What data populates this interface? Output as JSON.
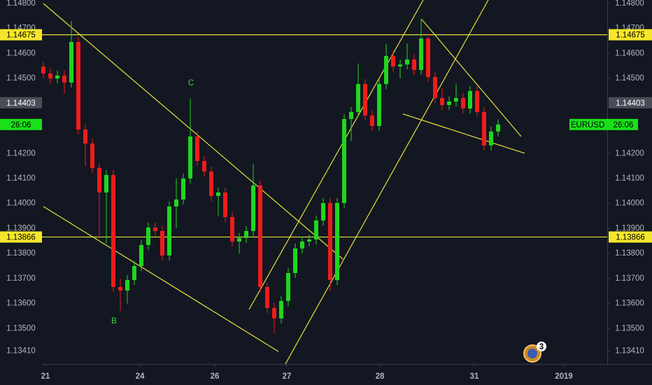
{
  "chart_data": {
    "type": "candlestick",
    "symbol": "EURUSD",
    "countdown": "26:06",
    "notification_count": "3",
    "up_color": "#1fd61f",
    "down_color": "#ee1c1c",
    "line_color": "#e6e03a",
    "xlim": [
      -0.2,
      80.6
    ],
    "xticks": [
      {
        "value": 0.3,
        "label": "21"
      },
      {
        "value": 13.8,
        "label": "24"
      },
      {
        "value": 24.5,
        "label": "26"
      },
      {
        "value": 34.8,
        "label": "27"
      },
      {
        "value": 48.1,
        "label": "28"
      },
      {
        "value": 61.6,
        "label": "31"
      },
      {
        "value": 74.4,
        "label": "2019"
      }
    ],
    "ylim": [
      1.13358,
      1.14814
    ],
    "yticks": [
      {
        "value": 1.148,
        "label": "1.14800"
      },
      {
        "value": 1.147,
        "label": "1.14700"
      },
      {
        "value": 1.146,
        "label": "1.14600"
      },
      {
        "value": 1.145,
        "label": "1.14500"
      },
      {
        "value": 1.142,
        "label": "1.14200"
      },
      {
        "value": 1.141,
        "label": "1.14100"
      },
      {
        "value": 1.14,
        "label": "1.14000"
      },
      {
        "value": 1.139,
        "label": "1.13900"
      },
      {
        "value": 1.138,
        "label": "1.13800"
      },
      {
        "value": 1.137,
        "label": "1.13700"
      },
      {
        "value": 1.136,
        "label": "1.13600"
      },
      {
        "value": 1.135,
        "label": "1.13500"
      },
      {
        "value": 1.1341,
        "label": "1.13410"
      }
    ],
    "open": [
      1.14548,
      1.1452,
      1.145,
      1.14512,
      1.14484,
      1.14646,
      1.14296,
      1.1424,
      1.14142,
      1.14044,
      1.14114,
      1.13666,
      1.13652,
      1.13694,
      1.1375,
      1.13834,
      1.13904,
      1.1389,
      1.13792,
      1.13988,
      1.14016,
      1.141,
      1.14268,
      1.1417,
      1.14128,
      1.1403,
      1.14044,
      1.13946,
      1.13848,
      1.13862,
      1.1389,
      1.14072,
      1.13666,
      1.13582,
      1.1354,
      1.1361,
      1.13722,
      1.1382,
      1.13848,
      1.13856,
      1.13932,
      1.14002,
      1.13694,
      1.14002,
      1.14338,
      1.14366,
      1.14478,
      1.14352,
      1.1431,
      1.14478,
      1.1459,
      1.14548,
      1.14556,
      1.14576,
      1.14534,
      1.1466,
      1.14506,
      1.14422,
      1.14394,
      1.14408,
      1.14422,
      1.1438,
      1.1445,
      1.14366,
      1.14232,
      1.14288
    ],
    "high": [
      1.14568,
      1.1454,
      1.14532,
      1.14532,
      1.1473,
      1.14666,
      1.14316,
      1.1426,
      1.14162,
      1.14134,
      1.14134,
      1.137,
      1.13714,
      1.1377,
      1.13854,
      1.13924,
      1.13924,
      1.1391,
      1.14008,
      1.141,
      1.1412,
      1.1442,
      1.14288,
      1.1419,
      1.14148,
      1.14064,
      1.14064,
      1.13966,
      1.13882,
      1.1391,
      1.1416,
      1.14092,
      1.13686,
      1.13602,
      1.1363,
      1.13742,
      1.1384,
      1.13868,
      1.13876,
      1.13952,
      1.14022,
      1.14022,
      1.14022,
      1.14358,
      1.14386,
      1.1456,
      1.14498,
      1.14372,
      1.14498,
      1.1464,
      1.1461,
      1.14576,
      1.1464,
      1.14596,
      1.1474,
      1.1468,
      1.14526,
      1.1446,
      1.14428,
      1.1448,
      1.14442,
      1.1447,
      1.1447,
      1.14386,
      1.14308,
      1.14336
    ],
    "low": [
      1.145,
      1.1448,
      1.1448,
      1.1444,
      1.14464,
      1.14276,
      1.1415,
      1.14122,
      1.1386,
      1.1384,
      1.13646,
      1.1357,
      1.136,
      1.13674,
      1.1373,
      1.13814,
      1.1387,
      1.13772,
      1.13772,
      1.139,
      1.13996,
      1.1408,
      1.1415,
      1.14108,
      1.1401,
      1.1395,
      1.13926,
      1.13828,
      1.138,
      1.13842,
      1.1387,
      1.13646,
      1.13562,
      1.1348,
      1.1352,
      1.1359,
      1.13702,
      1.138,
      1.13828,
      1.13836,
      1.13912,
      1.1365,
      1.13674,
      1.13982,
      1.1425,
      1.14346,
      1.14332,
      1.1429,
      1.1429,
      1.14458,
      1.14528,
      1.145,
      1.14536,
      1.14514,
      1.14514,
      1.14486,
      1.14402,
      1.14374,
      1.14374,
      1.14388,
      1.1436,
      1.1436,
      1.14346,
      1.14212,
      1.14212,
      1.14268
    ],
    "close": [
      1.1452,
      1.145,
      1.14512,
      1.14484,
      1.14646,
      1.14296,
      1.1424,
      1.14142,
      1.14044,
      1.14114,
      1.13666,
      1.13652,
      1.13694,
      1.1375,
      1.13834,
      1.13904,
      1.1389,
      1.13792,
      1.13988,
      1.14016,
      1.141,
      1.14268,
      1.1417,
      1.14128,
      1.1403,
      1.14044,
      1.13946,
      1.13848,
      1.13862,
      1.1389,
      1.14072,
      1.13666,
      1.13582,
      1.1354,
      1.1361,
      1.13722,
      1.1382,
      1.13848,
      1.13856,
      1.13932,
      1.14002,
      1.13694,
      1.14002,
      1.14338,
      1.14366,
      1.14478,
      1.14352,
      1.1431,
      1.14478,
      1.1459,
      1.14548,
      1.14556,
      1.14576,
      1.14534,
      1.1466,
      1.14506,
      1.14422,
      1.14394,
      1.14408,
      1.14422,
      1.1438,
      1.1445,
      1.14366,
      1.14232,
      1.14288,
      1.14316
    ],
    "levels": [
      {
        "value": 1.14675,
        "label": "1.14675"
      },
      {
        "value": 1.13866,
        "label": "1.13866"
      }
    ],
    "price_marker": {
      "value": 1.14403,
      "label": "1.14403"
    },
    "trendlines": [
      [
        [
          0,
          1.148
        ],
        [
          42.8,
          1.13778
        ]
      ],
      [
        [
          0,
          1.13988
        ],
        [
          33.6,
          1.13408
        ]
      ],
      [
        [
          29.4,
          1.13576
        ],
        [
          54.3,
          1.14814
        ]
      ],
      [
        [
          34.6,
          1.13358
        ],
        [
          63.6,
          1.14814
        ]
      ],
      [
        [
          54.1,
          1.14736
        ],
        [
          68.3,
          1.14268
        ]
      ],
      [
        [
          51.4,
          1.14358
        ],
        [
          68.8,
          1.14201
        ]
      ]
    ],
    "annotations": [
      {
        "text": "C",
        "x": 21.1,
        "y": 1.14481
      },
      {
        "text": "B",
        "x": 10.1,
        "y": 1.13529
      }
    ]
  }
}
